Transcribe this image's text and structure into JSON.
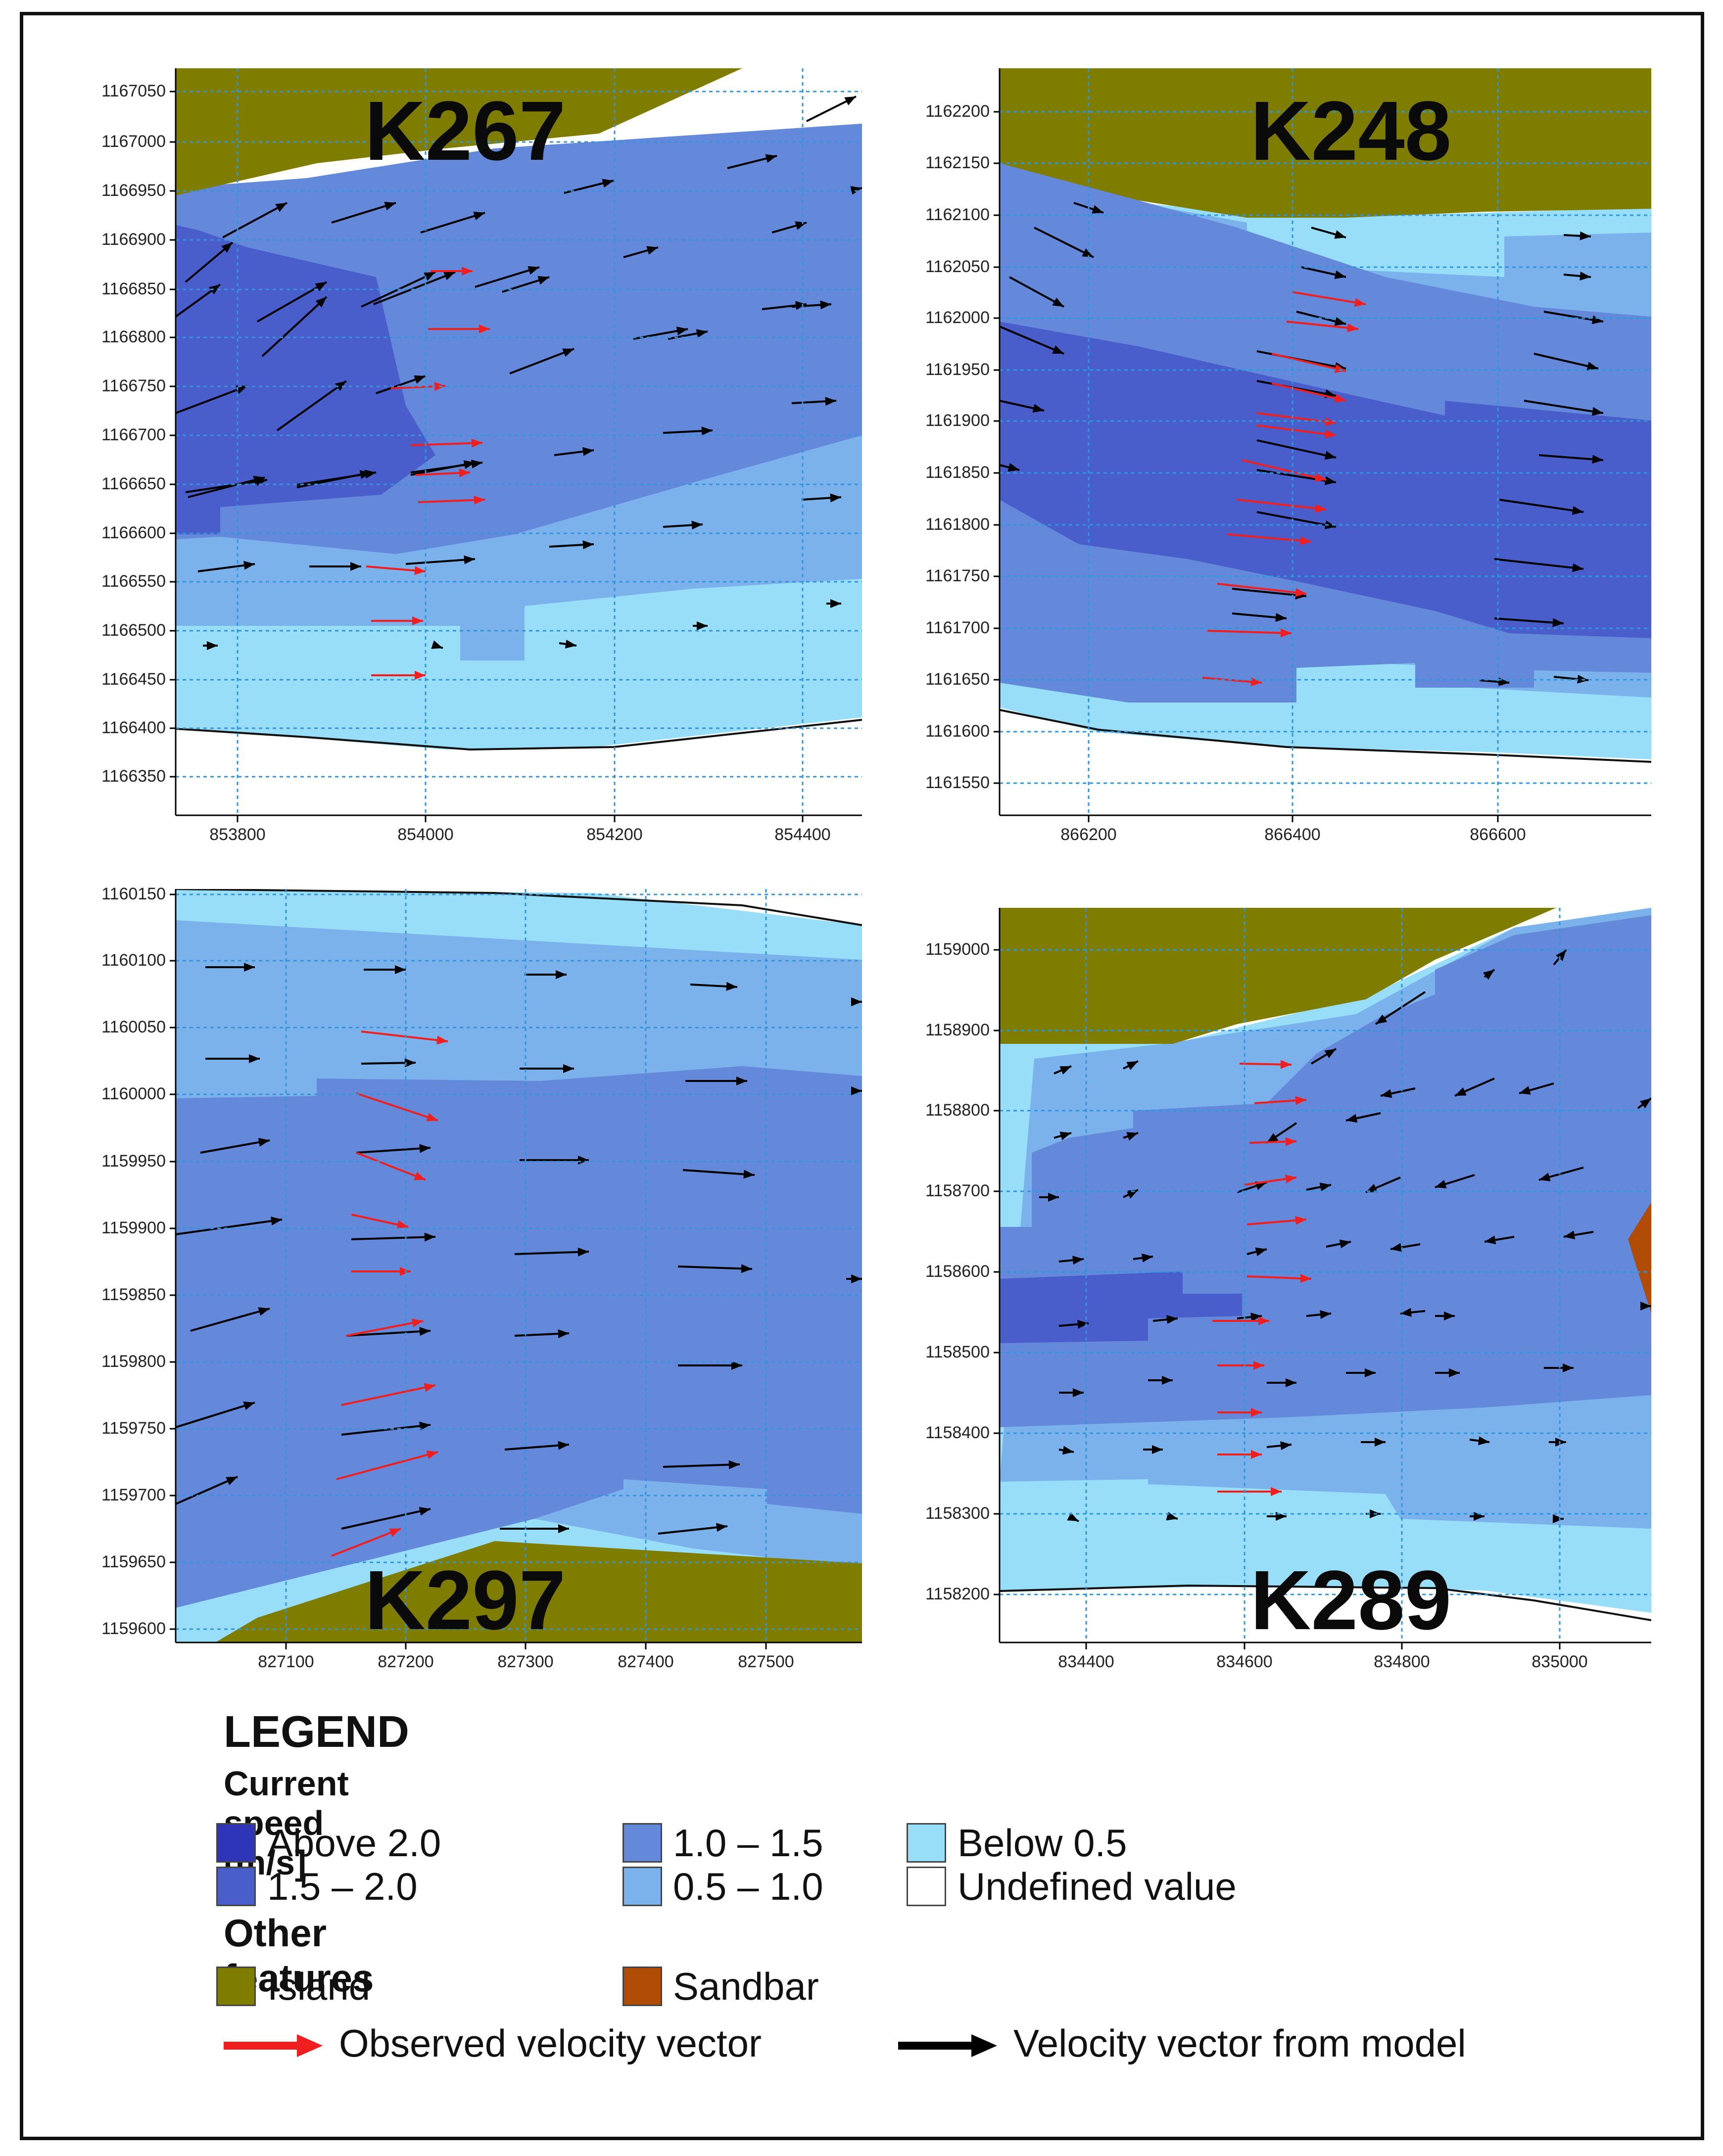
{
  "colors": {
    "above2": "#2f35b8",
    "c15_20": "#4a5ecb",
    "c10_15": "#6589da",
    "c05_10": "#7cb2ec",
    "below05": "#98def9",
    "undefined": "#ffffff",
    "island": "#7f7d00",
    "sandbar": "#b14c06",
    "observed": "#ef1f1f",
    "model": "#000000",
    "grid": "#2f96de"
  },
  "panels": [
    {
      "id": "K267",
      "label": "K267",
      "x_ticks": [
        "853800",
        "854000",
        "854200",
        "854400"
      ],
      "y_ticks": [
        "1167050",
        "1167000",
        "1166950",
        "1166900",
        "1166850",
        "1166800",
        "1166750",
        "1166700",
        "1166650",
        "1166600",
        "1166550",
        "1166500",
        "1166450",
        "1166400",
        "1166350"
      ]
    },
    {
      "id": "K248",
      "label": "K248",
      "x_ticks": [
        "866200",
        "866400",
        "866600"
      ],
      "y_ticks": [
        "1162200",
        "1162150",
        "1162100",
        "1162050",
        "1162000",
        "1161950",
        "1161900",
        "1161850",
        "1161800",
        "1161750",
        "1161700",
        "1161650",
        "1161600",
        "1161550"
      ]
    },
    {
      "id": "K297",
      "label": "K297",
      "x_ticks": [
        "827100",
        "827200",
        "827300",
        "827400",
        "827500"
      ],
      "y_ticks": [
        "1160150",
        "1160100",
        "1160050",
        "1160000",
        "1159950",
        "1159900",
        "1159850",
        "1159800",
        "1159750",
        "1159700",
        "1159650",
        "1159600"
      ]
    },
    {
      "id": "K289",
      "label": "K289",
      "x_ticks": [
        "834400",
        "834600",
        "834800",
        "835000"
      ],
      "y_ticks": [
        "1159000",
        "1158900",
        "1158800",
        "1158700",
        "1158600",
        "1158500",
        "1158400",
        "1158300",
        "1158200"
      ]
    }
  ],
  "legend": {
    "title": "LEGEND",
    "speed_title": "Current speed [m/s]",
    "speed_items": [
      {
        "label": "Above 2.0",
        "color_key": "above2"
      },
      {
        "label": "1.5 – 2.0",
        "color_key": "c15_20"
      },
      {
        "label": "1.0 – 1.5",
        "color_key": "c10_15"
      },
      {
        "label": "0.5 – 1.0",
        "color_key": "c05_10"
      },
      {
        "label": "Below 0.5",
        "color_key": "below05"
      },
      {
        "label": "Undefined value",
        "color_key": "undefined"
      }
    ],
    "other_title": "Other features",
    "other_items": [
      {
        "label": "Island",
        "color_key": "island"
      },
      {
        "label": "Sandbar",
        "color_key": "sandbar"
      }
    ],
    "observed_label": "Observed velocity vector",
    "model_label": "Velocity vector from model"
  }
}
